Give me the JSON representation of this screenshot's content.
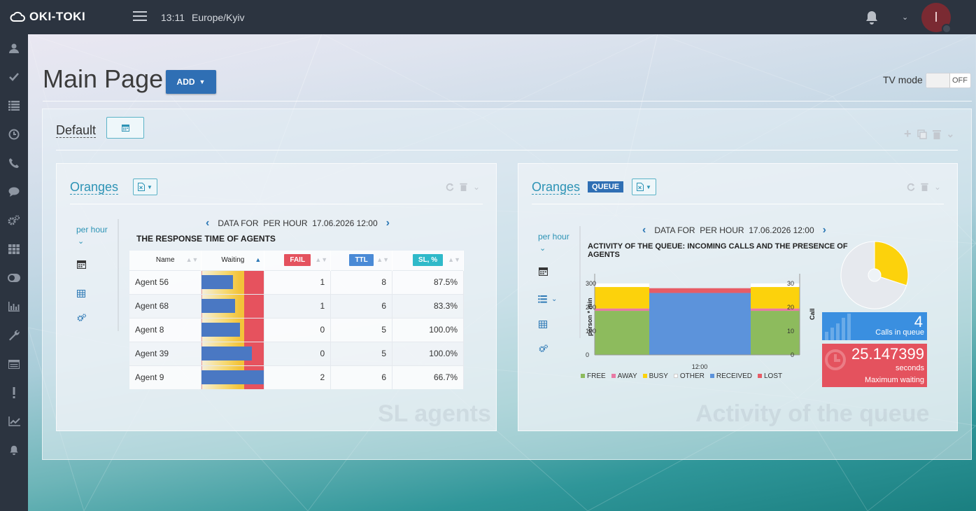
{
  "app": {
    "logo": "OKI-TOKI",
    "time": "13:11",
    "timezone": "Europe/Kyiv",
    "avatar_letter": "I"
  },
  "page": {
    "title": "Main Page",
    "add_label": "ADD",
    "tv_mode_label": "TV mode",
    "tv_mode_state": "OFF"
  },
  "dashboard": {
    "name": "Default"
  },
  "panel1": {
    "title": "Oranges",
    "period": "per hour",
    "data_for": "DATA FOR  PER HOUR  17.06.2026 12:00",
    "chart_title": "THE RESPONSE TIME OF AGENTS",
    "watermark": "SL agents",
    "columns": [
      "Name",
      "Waiting",
      "FAIL",
      "TTL",
      "SL, %"
    ],
    "rows": [
      {
        "name": "Agent 56",
        "waiting": 0.5,
        "fail": "1",
        "ttl": "8",
        "sl": "87.5%"
      },
      {
        "name": "Agent 68",
        "waiting": 0.54,
        "fail": "1",
        "ttl": "6",
        "sl": "83.3%"
      },
      {
        "name": "Agent 8",
        "waiting": 0.61,
        "fail": "0",
        "ttl": "5",
        "sl": "100.0%"
      },
      {
        "name": "Agent 39",
        "waiting": 0.81,
        "fail": "0",
        "ttl": "5",
        "sl": "100.0%"
      },
      {
        "name": "Agent 9",
        "waiting": 1.0,
        "fail": "2",
        "ttl": "6",
        "sl": "66.7%"
      }
    ]
  },
  "panel2": {
    "title": "Oranges",
    "badge": "QUEUE",
    "period": "per hour",
    "data_for": "DATA FOR  PER HOUR  17.06.2026 12:00",
    "chart_title": "ACTIVITY OF THE QUEUE: INCOMING CALLS AND THE PRESENCE OF AGENTS",
    "watermark": "Activity of the queue",
    "calls_in_queue": "4",
    "calls_in_queue_label": "Calls in queue",
    "max_wait": "25.147399",
    "max_wait_unit": "seconds",
    "max_wait_label": "Maximum waiting"
  },
  "colors": {
    "free": "#8dbb5d",
    "away": "#e87aa4",
    "busy": "#fcd20c",
    "other": "#ffffff",
    "received": "#5c93db",
    "lost": "#e75c66"
  },
  "chart_data": {
    "type": "bar",
    "title": "ACTIVITY OF THE QUEUE: INCOMING CALLS AND THE PRESENCE OF AGENTS",
    "categories": [
      "12:00"
    ],
    "ylabel": "person * min",
    "y2label": "Call",
    "ylim": [
      0,
      300
    ],
    "y2lim": [
      0,
      30
    ],
    "yticks": [
      "300",
      "200",
      "100",
      "0"
    ],
    "y2ticks": [
      "30",
      "20",
      "10",
      "0"
    ],
    "legend": [
      "FREE",
      "AWAY",
      "BUSY",
      "OTHER",
      "RECEIVED",
      "LOST"
    ],
    "series": [
      {
        "name": "FREE",
        "values": [
          185
        ]
      },
      {
        "name": "AWAY",
        "values": [
          10
        ]
      },
      {
        "name": "BUSY",
        "values": [
          90
        ]
      },
      {
        "name": "OTHER",
        "values": [
          15
        ]
      },
      {
        "name": "RECEIVED",
        "values": [
          26
        ]
      },
      {
        "name": "LOST",
        "values": [
          2
        ]
      }
    ],
    "pie": {
      "type": "pie",
      "values": [
        30,
        70
      ],
      "colors": [
        "#fcd20c",
        "#e6e9ee"
      ]
    }
  }
}
